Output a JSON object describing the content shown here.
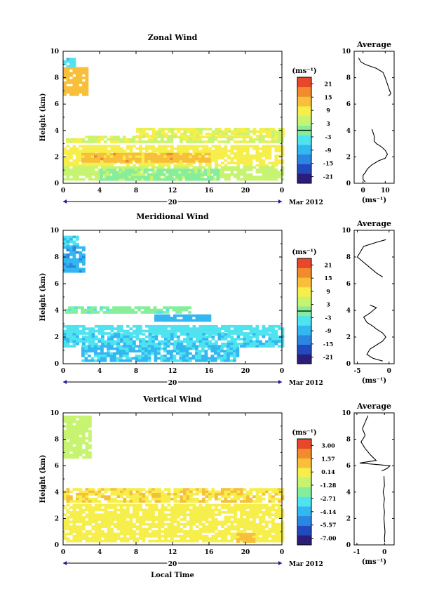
{
  "figure": {
    "date_label": "Mar 2012",
    "day_label": "20",
    "bottom_xlabel": "Local Time"
  },
  "chart_data": [
    {
      "type": "heatmap",
      "title": "Zonal Wind",
      "ylabel": "Height (km)",
      "x_ticks": [
        "0",
        "4",
        "8",
        "12",
        "16",
        "20",
        "0"
      ],
      "y_ticks": [
        "0",
        "2",
        "4",
        "6",
        "8",
        "10"
      ],
      "xlim": [
        0,
        24
      ],
      "ylim": [
        0,
        10
      ],
      "unit": "(ms⁻¹)",
      "colorbar_ticks": [
        "21",
        "15",
        "9",
        "3",
        "-3",
        "-9",
        "-15",
        "-21"
      ],
      "colorbar_range": [
        -24,
        24
      ],
      "zero_line_value": 0,
      "regions": [
        {
          "x": [
            0,
            1.3
          ],
          "y": [
            8.8,
            9.5
          ],
          "value": -6
        },
        {
          "x": [
            0,
            2.5
          ],
          "y": [
            6.8,
            8.8
          ],
          "value": 13
        },
        {
          "x": [
            0.3,
            24
          ],
          "y": [
            3.2,
            3.6
          ],
          "value": 6
        },
        {
          "x": [
            8,
            24
          ],
          "y": [
            3.6,
            4.2
          ],
          "value": 7
        },
        {
          "x": [
            0,
            24
          ],
          "y": [
            1.3,
            2.9
          ],
          "value": 9
        },
        {
          "x": [
            2,
            16
          ],
          "y": [
            1.7,
            2.3
          ],
          "value": 14
        },
        {
          "x": [
            0,
            24
          ],
          "y": [
            0.3,
            1.3
          ],
          "value": 5
        },
        {
          "x": [
            4,
            17
          ],
          "y": [
            0.3,
            1.1
          ],
          "value": 1
        }
      ],
      "profile": {
        "title": "Average",
        "xlabel": "(ms⁻¹)",
        "x_ticks": [
          "0",
          "10"
        ],
        "xlim": [
          -4,
          14
        ],
        "points": [
          [
            -2,
            9.5
          ],
          [
            -1,
            9.2
          ],
          [
            1,
            9
          ],
          [
            6,
            8.7
          ],
          [
            9,
            8.4
          ],
          [
            10,
            8
          ],
          [
            11,
            7.5
          ],
          [
            12,
            7
          ],
          [
            12.5,
            6.8
          ],
          [
            11.5,
            6.6
          ]
        ],
        "points2": [
          [
            4,
            4.1
          ],
          [
            5,
            3.6
          ],
          [
            5,
            3.2
          ],
          [
            6,
            3
          ],
          [
            8,
            2.8
          ],
          [
            10,
            2.5
          ],
          [
            11,
            2.2
          ],
          [
            10,
            1.9
          ],
          [
            7,
            1.7
          ],
          [
            4,
            1.4
          ],
          [
            2,
            1.1
          ],
          [
            1,
            0.8
          ],
          [
            0,
            0.6
          ],
          [
            0,
            0.3
          ],
          [
            1,
            0.1
          ]
        ]
      }
    },
    {
      "type": "heatmap",
      "title": "Meridional Wind",
      "ylabel": "Height (km)",
      "x_ticks": [
        "0",
        "4",
        "8",
        "12",
        "16",
        "20",
        "0"
      ],
      "y_ticks": [
        "0",
        "2",
        "4",
        "6",
        "8",
        "10"
      ],
      "xlim": [
        0,
        24
      ],
      "ylim": [
        0,
        10
      ],
      "unit": "(ms⁻¹)",
      "colorbar_ticks": [
        "21",
        "15",
        "9",
        "3",
        "-3",
        "-9",
        "-15",
        "-21"
      ],
      "colorbar_range": [
        -24,
        24
      ],
      "zero_line_value": 0,
      "regions": [
        {
          "x": [
            0,
            1.5
          ],
          "y": [
            8.8,
            9.6
          ],
          "value": -6
        },
        {
          "x": [
            0,
            2.3
          ],
          "y": [
            6.9,
            8.8
          ],
          "value": -10
        },
        {
          "x": [
            0.2,
            14
          ],
          "y": [
            3.8,
            4.3
          ],
          "value": -1
        },
        {
          "x": [
            10,
            16
          ],
          "y": [
            3.3,
            3.7
          ],
          "value": -9
        },
        {
          "x": [
            0,
            24
          ],
          "y": [
            2.3,
            2.9
          ],
          "value": -4
        },
        {
          "x": [
            0,
            24
          ],
          "y": [
            1.4,
            2.3
          ],
          "value": -6
        },
        {
          "x": [
            2,
            19
          ],
          "y": [
            0.3,
            1.4
          ],
          "value": -7
        }
      ],
      "profile": {
        "title": "Average",
        "xlabel": "(ms⁻¹)",
        "x_ticks": [
          "-5",
          "0"
        ],
        "xlim": [
          -5.5,
          0.8
        ],
        "points": [
          [
            -0.5,
            9.3
          ],
          [
            -2,
            9.1
          ],
          [
            -4,
            8.8
          ],
          [
            -5,
            8
          ],
          [
            -3,
            7.2
          ],
          [
            -2,
            6.8
          ],
          [
            -1,
            6.5
          ]
        ],
        "points2": [
          [
            -3,
            4.4
          ],
          [
            -2,
            4.2
          ],
          [
            -2.5,
            4
          ],
          [
            -3,
            3.8
          ],
          [
            -4,
            3.5
          ],
          [
            -3.5,
            3.1
          ],
          [
            -2.5,
            2.8
          ],
          [
            -2,
            2.6
          ],
          [
            -1,
            2.3
          ],
          [
            -0.5,
            2
          ],
          [
            -1,
            1.7
          ],
          [
            -2,
            1.4
          ],
          [
            -3,
            1.1
          ],
          [
            -3.5,
            0.7
          ],
          [
            -2.5,
            0.4
          ],
          [
            -1,
            0.2
          ]
        ]
      }
    },
    {
      "type": "heatmap",
      "title": "Vertical Wind",
      "ylabel": "Height (km)",
      "x_ticks": [
        "0",
        "4",
        "8",
        "12",
        "16",
        "20",
        "0"
      ],
      "y_ticks": [
        "0",
        "2",
        "4",
        "6",
        "8",
        "10"
      ],
      "xlim": [
        0,
        24
      ],
      "ylim": [
        0,
        10
      ],
      "unit": "(ms⁻¹)",
      "colorbar_ticks": [
        "3.00",
        "1.57",
        "0.14",
        "-1.28",
        "-2.71",
        "-4.14",
        "-5.57",
        "-7.00"
      ],
      "colorbar_range": [
        -7.71,
        3.71
      ],
      "zero_line_value": null,
      "regions": [
        {
          "x": [
            0,
            2.8
          ],
          "y": [
            6.7,
            9.8
          ],
          "value": -1.0
        },
        {
          "x": [
            0,
            24
          ],
          "y": [
            3.3,
            4.3
          ],
          "value": 0.5
        },
        {
          "x": [
            0,
            24
          ],
          "y": [
            0.3,
            3.1
          ],
          "value": 0.2
        },
        {
          "x": [
            19,
            21
          ],
          "y": [
            0.3,
            0.9
          ],
          "value": 1.3
        }
      ],
      "profile": {
        "title": "Average",
        "xlabel": "(ms⁻¹)",
        "x_ticks": [
          "-1",
          "0"
        ],
        "xlim": [
          -1.1,
          0.35
        ],
        "points": [
          [
            -0.6,
            9.8
          ],
          [
            -0.7,
            9.3
          ],
          [
            -0.8,
            8.8
          ],
          [
            -0.7,
            8.3
          ],
          [
            -0.85,
            7.8
          ],
          [
            -0.7,
            7.3
          ],
          [
            -0.5,
            6.8
          ],
          [
            -0.3,
            6.4
          ],
          [
            -0.9,
            6.2
          ],
          [
            0.2,
            6.0
          ],
          [
            0.1,
            5.8
          ],
          [
            -0.1,
            5.6
          ]
        ],
        "points2": [
          [
            -0.02,
            5.2
          ],
          [
            0,
            4.5
          ],
          [
            -0.05,
            4
          ],
          [
            0,
            3.5
          ],
          [
            -0.03,
            3
          ],
          [
            0,
            2.5
          ],
          [
            -0.02,
            2
          ],
          [
            0,
            1.5
          ],
          [
            0.02,
            1
          ],
          [
            0,
            0.5
          ],
          [
            0.01,
            0.2
          ]
        ]
      }
    }
  ],
  "colors": {
    "palette": [
      "#2b1d7a",
      "#2349bf",
      "#2a86e0",
      "#33b7f0",
      "#4fe3f0",
      "#86ee9a",
      "#c7f470",
      "#f6ee4a",
      "#f7bf3a",
      "#f18b2c",
      "#e8472a"
    ]
  }
}
